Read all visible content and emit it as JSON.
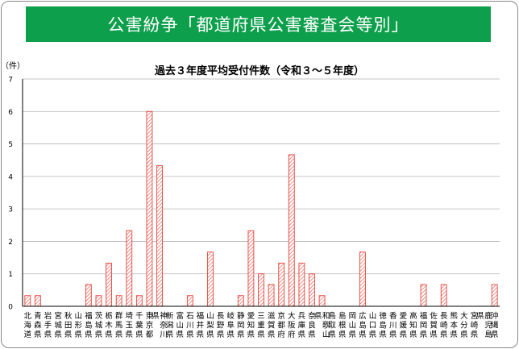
{
  "banner": {
    "title": "公害紛争「都道府県公害審査会等別」"
  },
  "colors": {
    "banner_bg": "#0e9f4c",
    "bar_stroke": "#e8443a",
    "axis": "#000000",
    "gridline": "#b3b3b3"
  },
  "chart_data": {
    "type": "bar",
    "title": "過去３年度平均受付件数（令和３～５年度）",
    "ylabel": "（件）",
    "xlabel": "",
    "ylim": [
      0,
      7
    ],
    "yticks": [
      0,
      1,
      2,
      3,
      4,
      5,
      6,
      7
    ],
    "grid": true,
    "bar_style": "hatched",
    "categories": [
      "北海道",
      "青森県",
      "岩手県",
      "宮城県",
      "秋田県",
      "山形県",
      "福島県",
      "茨城県",
      "栃木県",
      "群馬県",
      "埼玉県",
      "千葉県",
      "東京都",
      "神奈川県",
      "新潟県",
      "富山県",
      "石川県",
      "福井県",
      "山梨県",
      "長野県",
      "岐阜県",
      "静岡県",
      "愛知県",
      "三重県",
      "滋賀県",
      "京都府",
      "大阪府",
      "兵庫県",
      "奈良県",
      "和歌山県",
      "鳥取県",
      "島根県",
      "岡山県",
      "広島県",
      "山口県",
      "徳島県",
      "香川県",
      "愛媛県",
      "高知県",
      "福岡県",
      "佐賀県",
      "長崎県",
      "熊本県",
      "大分県",
      "宮崎県",
      "鹿児島県",
      "沖縄県"
    ],
    "values": [
      0.33,
      0.33,
      0,
      0,
      0,
      0,
      0.67,
      0.33,
      1.33,
      0.33,
      2.33,
      0.33,
      6,
      4.33,
      0,
      0,
      0.33,
      0,
      1.67,
      0,
      0,
      0.33,
      2.33,
      1,
      0.67,
      1.33,
      4.67,
      1.33,
      1,
      0.33,
      0,
      0,
      0,
      1.67,
      0,
      0,
      0,
      0,
      0,
      0.67,
      0,
      0.67,
      0,
      0,
      0,
      0,
      0.67
    ]
  }
}
